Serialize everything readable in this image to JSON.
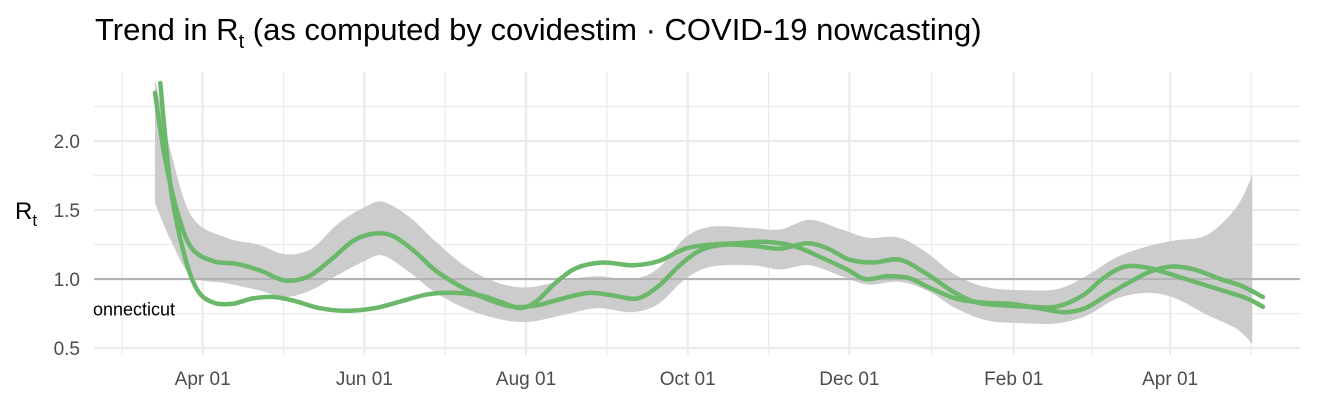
{
  "chart_data": {
    "type": "line",
    "title": {
      "prefix": "Trend in R",
      "subscript": "t",
      "suffix": " (as computed by covidestim · COVID-19 nowcasting)"
    },
    "ylabel": {
      "main": "R",
      "subscript": "t"
    },
    "xlabel": "",
    "x_ticks": [
      {
        "date": "2020-04-01",
        "label": "Apr 01"
      },
      {
        "date": "2020-06-01",
        "label": "Jun 01"
      },
      {
        "date": "2020-08-01",
        "label": "Aug 01"
      },
      {
        "date": "2020-10-01",
        "label": "Oct 01"
      },
      {
        "date": "2020-12-01",
        "label": "Dec 01"
      },
      {
        "date": "2021-02-01",
        "label": "Feb 01"
      },
      {
        "date": "2021-04-01",
        "label": "Apr 01"
      }
    ],
    "y_ticks": [
      {
        "value": 0.5,
        "label": "0.5"
      },
      {
        "value": 1.0,
        "label": "1.0"
      },
      {
        "value": 1.5,
        "label": "1.5"
      },
      {
        "value": 2.0,
        "label": "2.0"
      }
    ],
    "xlim": [
      "2020-02-20",
      "2021-05-20"
    ],
    "ylim": [
      0.45,
      2.5
    ],
    "reference_line": 1.0,
    "grid": true,
    "annotation": "onnecticut",
    "annotation_value": 0.78,
    "colors": {
      "line": "#6bb86b",
      "band": "#cccccc",
      "refline": "#b3b3b3",
      "grid": "#ebebeb"
    },
    "series": [
      {
        "values": [
          [
            "2020-03-14",
            2.35
          ],
          [
            "2020-03-18",
            1.85
          ],
          [
            "2020-03-23",
            1.45
          ],
          [
            "2020-03-28",
            1.22
          ],
          [
            "2020-04-05",
            1.13
          ],
          [
            "2020-04-14",
            1.11
          ],
          [
            "2020-04-23",
            1.06
          ],
          [
            "2020-05-02",
            0.99
          ],
          [
            "2020-05-11",
            1.02
          ],
          [
            "2020-05-20",
            1.15
          ],
          [
            "2020-05-28",
            1.28
          ],
          [
            "2020-06-05",
            1.33
          ],
          [
            "2020-06-12",
            1.31
          ],
          [
            "2020-06-20",
            1.2
          ],
          [
            "2020-06-28",
            1.06
          ],
          [
            "2020-07-08",
            0.94
          ],
          [
            "2020-07-18",
            0.85
          ],
          [
            "2020-07-27",
            0.8
          ],
          [
            "2020-08-05",
            0.81
          ],
          [
            "2020-08-15",
            0.86
          ],
          [
            "2020-08-25",
            0.9
          ],
          [
            "2020-09-03",
            0.88
          ],
          [
            "2020-09-12",
            0.86
          ],
          [
            "2020-09-20",
            0.95
          ],
          [
            "2020-09-28",
            1.1
          ],
          [
            "2020-10-06",
            1.21
          ],
          [
            "2020-10-15",
            1.25
          ],
          [
            "2020-10-26",
            1.24
          ],
          [
            "2020-11-05",
            1.22
          ],
          [
            "2020-11-15",
            1.26
          ],
          [
            "2020-11-23",
            1.22
          ],
          [
            "2020-12-01",
            1.14
          ],
          [
            "2020-12-10",
            1.12
          ],
          [
            "2020-12-20",
            1.14
          ],
          [
            "2020-12-30",
            1.04
          ],
          [
            "2021-01-09",
            0.91
          ],
          [
            "2021-01-18",
            0.83
          ],
          [
            "2021-01-28",
            0.81
          ],
          [
            "2021-02-07",
            0.8
          ],
          [
            "2021-02-17",
            0.8
          ],
          [
            "2021-02-27",
            0.88
          ],
          [
            "2021-03-07",
            1.01
          ],
          [
            "2021-03-15",
            1.09
          ],
          [
            "2021-03-24",
            1.08
          ],
          [
            "2021-04-02",
            1.03
          ],
          [
            "2021-04-12",
            0.97
          ],
          [
            "2021-04-22",
            0.91
          ],
          [
            "2021-04-30",
            0.86
          ],
          [
            "2021-05-06",
            0.8
          ]
        ]
      },
      {
        "values": [
          [
            "2020-03-16",
            2.42
          ],
          [
            "2020-03-20",
            1.65
          ],
          [
            "2020-03-25",
            1.18
          ],
          [
            "2020-03-30",
            0.92
          ],
          [
            "2020-04-05",
            0.83
          ],
          [
            "2020-04-12",
            0.82
          ],
          [
            "2020-04-20",
            0.86
          ],
          [
            "2020-04-28",
            0.87
          ],
          [
            "2020-05-06",
            0.84
          ],
          [
            "2020-05-15",
            0.79
          ],
          [
            "2020-05-25",
            0.77
          ],
          [
            "2020-06-05",
            0.79
          ],
          [
            "2020-06-15",
            0.84
          ],
          [
            "2020-06-25",
            0.89
          ],
          [
            "2020-07-05",
            0.9
          ],
          [
            "2020-07-15",
            0.88
          ],
          [
            "2020-07-23",
            0.83
          ],
          [
            "2020-07-30",
            0.79
          ],
          [
            "2020-08-05",
            0.84
          ],
          [
            "2020-08-12",
            0.97
          ],
          [
            "2020-08-20",
            1.08
          ],
          [
            "2020-08-30",
            1.12
          ],
          [
            "2020-09-10",
            1.1
          ],
          [
            "2020-09-20",
            1.13
          ],
          [
            "2020-09-30",
            1.22
          ],
          [
            "2020-10-10",
            1.25
          ],
          [
            "2020-10-20",
            1.26
          ],
          [
            "2020-10-30",
            1.27
          ],
          [
            "2020-11-10",
            1.24
          ],
          [
            "2020-11-20",
            1.16
          ],
          [
            "2020-11-30",
            1.07
          ],
          [
            "2020-12-07",
            1.0
          ],
          [
            "2020-12-15",
            1.02
          ],
          [
            "2020-12-23",
            1.01
          ],
          [
            "2020-12-31",
            0.94
          ],
          [
            "2021-01-10",
            0.86
          ],
          [
            "2021-01-20",
            0.83
          ],
          [
            "2021-01-31",
            0.82
          ],
          [
            "2021-02-10",
            0.79
          ],
          [
            "2021-02-20",
            0.76
          ],
          [
            "2021-02-28",
            0.79
          ],
          [
            "2021-03-08",
            0.88
          ],
          [
            "2021-03-16",
            0.97
          ],
          [
            "2021-03-24",
            1.05
          ],
          [
            "2021-04-01",
            1.09
          ],
          [
            "2021-04-10",
            1.07
          ],
          [
            "2021-04-20",
            1.0
          ],
          [
            "2021-04-28",
            0.95
          ],
          [
            "2021-05-06",
            0.87
          ]
        ]
      }
    ],
    "band": [
      [
        "2020-03-14",
        2.45,
        1.55
      ],
      [
        "2020-03-20",
        1.92,
        1.28
      ],
      [
        "2020-03-28",
        1.45,
        1.02
      ],
      [
        "2020-04-10",
        1.3,
        0.97
      ],
      [
        "2020-04-22",
        1.25,
        0.92
      ],
      [
        "2020-05-02",
        1.18,
        0.87
      ],
      [
        "2020-05-12",
        1.22,
        0.92
      ],
      [
        "2020-05-22",
        1.4,
        1.03
      ],
      [
        "2020-06-01",
        1.52,
        1.13
      ],
      [
        "2020-06-08",
        1.56,
        1.17
      ],
      [
        "2020-06-18",
        1.45,
        1.05
      ],
      [
        "2020-06-28",
        1.27,
        0.9
      ],
      [
        "2020-07-10",
        1.08,
        0.78
      ],
      [
        "2020-07-22",
        0.97,
        0.71
      ],
      [
        "2020-08-02",
        0.94,
        0.69
      ],
      [
        "2020-08-15",
        0.99,
        0.74
      ],
      [
        "2020-08-28",
        1.02,
        0.79
      ],
      [
        "2020-09-10",
        1.0,
        0.76
      ],
      [
        "2020-09-20",
        1.08,
        0.82
      ],
      [
        "2020-09-30",
        1.3,
        1.0
      ],
      [
        "2020-10-10",
        1.38,
        1.09
      ],
      [
        "2020-10-25",
        1.37,
        1.1
      ],
      [
        "2020-11-05",
        1.36,
        1.07
      ],
      [
        "2020-11-16",
        1.43,
        1.1
      ],
      [
        "2020-11-28",
        1.36,
        1.02
      ],
      [
        "2020-12-08",
        1.3,
        0.96
      ],
      [
        "2020-12-20",
        1.3,
        0.98
      ],
      [
        "2020-12-31",
        1.18,
        0.91
      ],
      [
        "2021-01-10",
        1.03,
        0.79
      ],
      [
        "2021-01-22",
        0.94,
        0.7
      ],
      [
        "2021-02-05",
        0.92,
        0.68
      ],
      [
        "2021-02-18",
        0.93,
        0.68
      ],
      [
        "2021-03-01",
        1.03,
        0.74
      ],
      [
        "2021-03-12",
        1.16,
        0.86
      ],
      [
        "2021-03-24",
        1.24,
        0.9
      ],
      [
        "2021-04-03",
        1.28,
        0.86
      ],
      [
        "2021-04-15",
        1.32,
        0.74
      ],
      [
        "2021-04-26",
        1.52,
        0.64
      ],
      [
        "2021-05-02",
        1.75,
        0.53
      ]
    ]
  }
}
